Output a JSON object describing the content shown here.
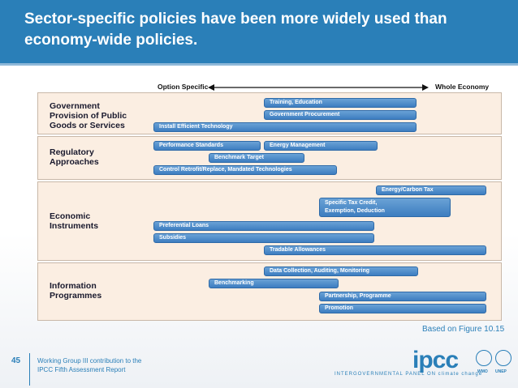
{
  "slide": {
    "title": "Sector-specific policies have been more widely used than economy-wide policies.",
    "caption": "Based on Figure 10.15",
    "page_number": "45",
    "footer_line1": "Working Group III contribution to the",
    "footer_line2": "IPCC Fifth Assessment Report",
    "logo": "ipcc",
    "logo_sub": "INTERGOVERNMENTAL PANEL ON climate change",
    "seal1": "WMO",
    "seal2": "UNEP"
  },
  "axis": {
    "left": "Option Specific",
    "right": "Whole Economy"
  },
  "groups": [
    {
      "label1": "Government",
      "label2": "Provision of Public",
      "label3": "Goods or Services",
      "bars": [
        "Training, Education",
        "Government Procurement",
        "Install Efficient Technology"
      ]
    },
    {
      "label1": "Regulatory",
      "label2": "Approaches",
      "bars": [
        "Performance Standards",
        "Energy Management",
        "Benchmark Target",
        "Control Retrofit/Replace, Mandated Technologies"
      ]
    },
    {
      "label1": "Economic",
      "label2": "Instruments",
      "bars": [
        "Energy/Carbon Tax",
        "Specific Tax Credit,",
        "Exemption, Deduction",
        "Preferential Loans",
        "Subsidies",
        "Tradable Allowances"
      ]
    },
    {
      "label1": "Information",
      "label2": "Programmes",
      "bars": [
        "Data Collection, Auditing, Monitoring",
        "Benchmarking",
        "Partnership, Programme",
        "Promotion"
      ]
    }
  ],
  "colors": {
    "header": "#2a7fb8",
    "bar": "#3d7dc0",
    "panel": "#fbeee2"
  }
}
